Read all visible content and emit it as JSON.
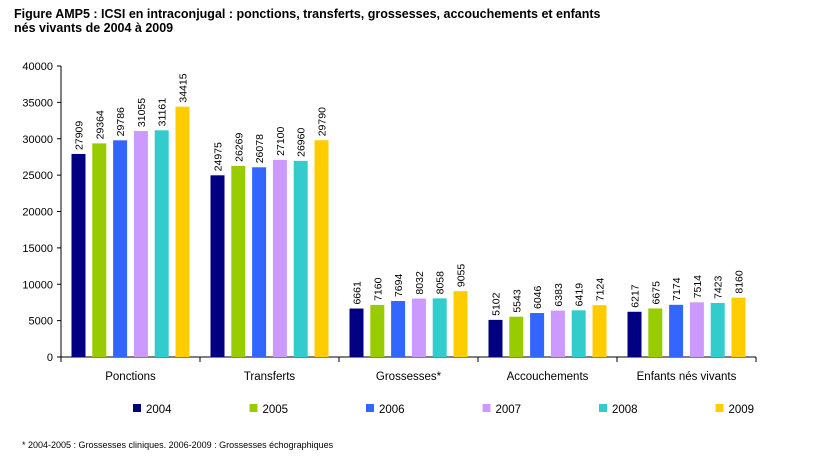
{
  "title": {
    "line1": "Figure AMP5 : ICSI en intraconjugal : ponctions, transferts, grossesses, accouchements et enfants",
    "line2": "nés vivants de 2004 à 2009"
  },
  "footnote": "* 2004-2005 : Grossesses cliniques. 2006-2009 : Grossesses échographiques",
  "chart_data": {
    "type": "bar",
    "title": "Figure AMP5 : ICSI en intraconjugal : ponctions, transferts, grossesses, accouchements et enfants nés vivants de 2004 à 2009",
    "xlabel": "",
    "ylabel": "",
    "categories": [
      "Ponctions",
      "Transferts",
      "Grossesses*",
      "Accouchements",
      "Enfants nés vivants"
    ],
    "ylim": [
      0,
      40000
    ],
    "yticks": [
      0,
      5000,
      10000,
      15000,
      20000,
      25000,
      30000,
      35000,
      40000
    ],
    "grid": false,
    "legend_position": "bottom",
    "series": [
      {
        "name": "2004",
        "color": "#000080",
        "values": [
          27909,
          24975,
          6661,
          5102,
          6217
        ]
      },
      {
        "name": "2005",
        "color": "#99CC00",
        "values": [
          29364,
          26269,
          7160,
          5543,
          6675
        ]
      },
      {
        "name": "2006",
        "color": "#3366FF",
        "values": [
          29786,
          26078,
          7694,
          6046,
          7174
        ]
      },
      {
        "name": "2007",
        "color": "#CC99FF",
        "values": [
          31055,
          27100,
          8032,
          6383,
          7514
        ]
      },
      {
        "name": "2008",
        "color": "#33CCCC",
        "values": [
          31161,
          26960,
          8058,
          6419,
          7423
        ]
      },
      {
        "name": "2009",
        "color": "#FFCC00",
        "values": [
          34415,
          29790,
          9055,
          7124,
          8160
        ]
      }
    ]
  }
}
